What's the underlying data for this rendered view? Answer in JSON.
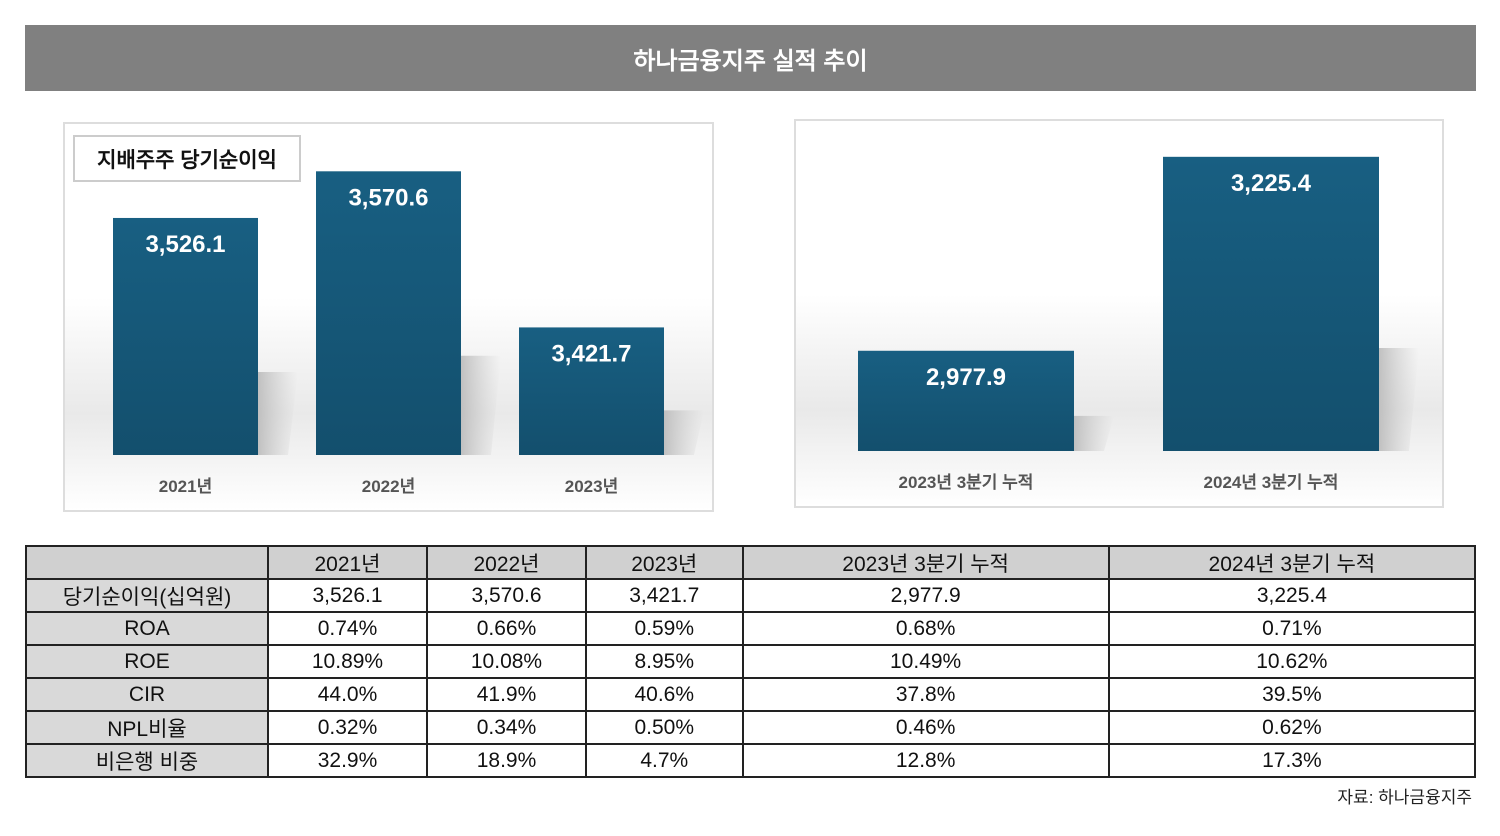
{
  "title": "하나금융지주 실적 추이",
  "colors": {
    "bar": "#17587a",
    "header_bg": "#808080"
  },
  "chart_data": [
    {
      "type": "bar",
      "legend": "지배주주 당기순이익",
      "categories": [
        "2021년",
        "2022년",
        "2023년"
      ],
      "values": [
        3526.1,
        3570.6,
        3421.7
      ],
      "data_labels": [
        "3,526.1",
        "3,570.6",
        "3,421.7"
      ],
      "ylim": [
        3300,
        3610
      ],
      "grid": false
    },
    {
      "type": "bar",
      "categories": [
        "2023년 3분기 누적",
        "2024년 3분기 누적"
      ],
      "values": [
        2977.9,
        3225.4
      ],
      "data_labels": [
        "2,977.9",
        "3,225.4"
      ],
      "ylim": [
        2850,
        3266
      ],
      "grid": false
    }
  ],
  "table": {
    "headers": [
      "",
      "2021년",
      "2022년",
      "2023년",
      "2023년 3분기 누적",
      "2024년 3분기 누적"
    ],
    "rows": [
      [
        "당기순이익(십억원)",
        "3,526.1",
        "3,570.6",
        "3,421.7",
        "2,977.9",
        "3,225.4"
      ],
      [
        "ROA",
        "0.74%",
        "0.66%",
        "0.59%",
        "0.68%",
        "0.71%"
      ],
      [
        "ROE",
        "10.89%",
        "10.08%",
        "8.95%",
        "10.49%",
        "10.62%"
      ],
      [
        "CIR",
        "44.0%",
        "41.9%",
        "40.6%",
        "37.8%",
        "39.5%"
      ],
      [
        "NPL비율",
        "0.32%",
        "0.34%",
        "0.50%",
        "0.46%",
        "0.62%"
      ],
      [
        "비은행 비중",
        "32.9%",
        "18.9%",
        "4.7%",
        "12.8%",
        "17.3%"
      ]
    ]
  },
  "source": "자료: 하나금융지주"
}
